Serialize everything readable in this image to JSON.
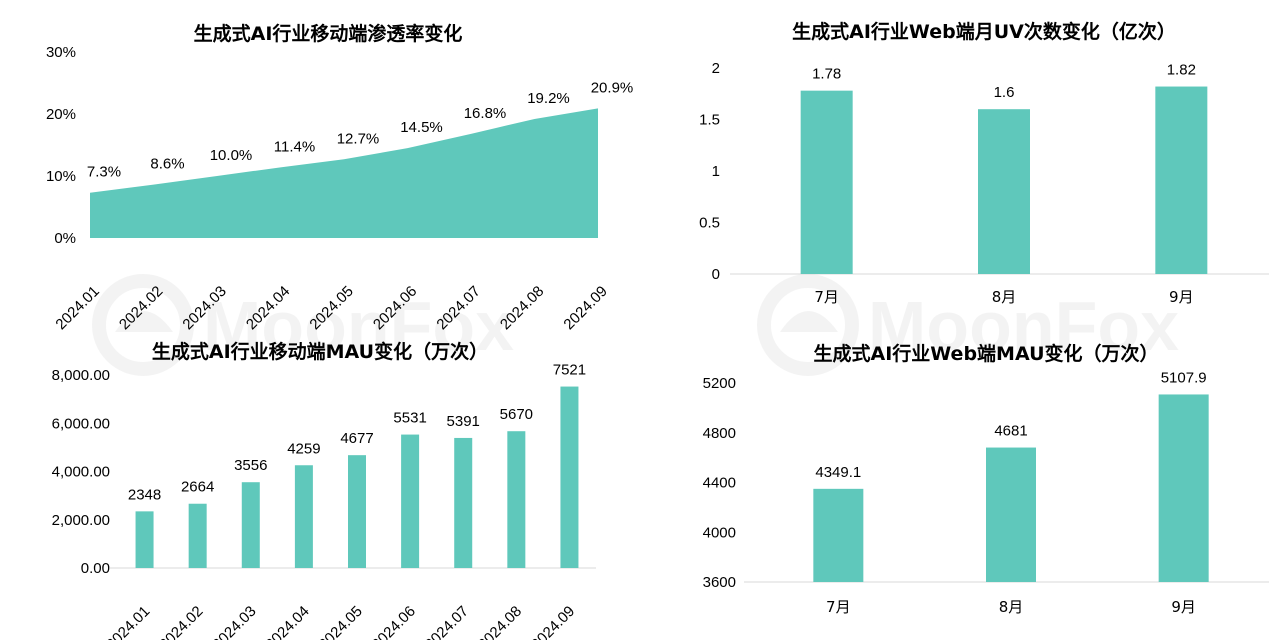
{
  "watermark": {
    "text": "MoonFox"
  },
  "colors": {
    "bar": "#5fc8bb",
    "axis": "#d9d9d9",
    "text": "#000000"
  },
  "chart_data": [
    {
      "id": "mobile-penetration",
      "type": "area",
      "title": "生成式AI行业移动端渗透率变化",
      "categories": [
        "2024.01",
        "2024.02",
        "2024.03",
        "2024.04",
        "2024.05",
        "2024.06",
        "2024.07",
        "2024.08",
        "2024.09"
      ],
      "values": [
        7.3,
        8.6,
        10.0,
        11.4,
        12.7,
        14.5,
        16.8,
        19.2,
        20.9
      ],
      "data_labels": [
        "7.3%",
        "8.6%",
        "10.0%",
        "11.4%",
        "12.7%",
        "14.5%",
        "16.8%",
        "19.2%",
        "20.9%"
      ],
      "yticks": [
        "0%",
        "10%",
        "20%",
        "30%"
      ],
      "ylim": [
        0,
        30
      ],
      "grid": false,
      "legend": "none"
    },
    {
      "id": "web-uv",
      "type": "bar",
      "title": "生成式AI行业Web端月UV次数变化（亿次）",
      "categories": [
        "7月",
        "8月",
        "9月"
      ],
      "values": [
        1.78,
        1.6,
        1.82
      ],
      "data_labels": [
        "1.78",
        "1.6",
        "1.82"
      ],
      "yticks": [
        "0",
        "0.5",
        "1",
        "1.5",
        "2"
      ],
      "ylim": [
        0,
        2
      ],
      "grid": false,
      "legend": "none"
    },
    {
      "id": "mobile-mau",
      "type": "bar",
      "title": "生成式AI行业移动端MAU变化（万次）",
      "categories": [
        "2024.01",
        "2024.02",
        "2024.03",
        "2024.04",
        "2024.05",
        "2024.06",
        "2024.07",
        "2024.08",
        "2024.09"
      ],
      "values": [
        2348,
        2664,
        3556,
        4259,
        4677,
        5531,
        5391,
        5670,
        7521
      ],
      "data_labels": [
        "2348",
        "2664",
        "3556",
        "4259",
        "4677",
        "5531",
        "5391",
        "5670",
        "7521"
      ],
      "yticks": [
        "0.00",
        "2,000.00",
        "4,000.00",
        "6,000.00",
        "8,000.00"
      ],
      "ylim": [
        0,
        8000
      ],
      "grid": false,
      "legend": "none"
    },
    {
      "id": "web-mau",
      "type": "bar",
      "title": "生成式AI行业Web端MAU变化（万次）",
      "categories": [
        "7月",
        "8月",
        "9月"
      ],
      "values": [
        4349.1,
        4681,
        5107.9
      ],
      "data_labels": [
        "4349.1",
        "4681",
        "5107.9"
      ],
      "yticks": [
        "3600",
        "4000",
        "4400",
        "4800",
        "5200"
      ],
      "ylim": [
        3600,
        5200
      ],
      "grid": false,
      "legend": "none"
    }
  ]
}
